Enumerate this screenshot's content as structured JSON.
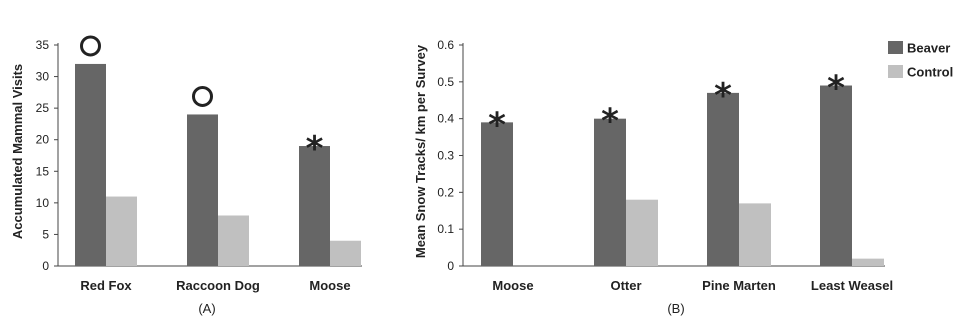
{
  "colors": {
    "beaver": "#666666",
    "control": "#c0c0c0"
  },
  "chart_data": [
    {
      "type": "bar",
      "panel_label": "(A)",
      "categories": [
        "Red Fox",
        "Raccoon Dog",
        "Moose"
      ],
      "series": [
        {
          "name": "Beaver",
          "values": [
            32,
            24,
            19
          ]
        },
        {
          "name": "Control",
          "values": [
            11,
            8,
            4
          ]
        }
      ],
      "markers": [
        "circle",
        "circle",
        "star"
      ],
      "ylabel": "Accumulated Mammal Visits",
      "ylim": [
        0,
        35
      ],
      "yticks": [
        "0",
        "5",
        "10",
        "15",
        "20",
        "25",
        "30",
        "35"
      ],
      "grid": false
    },
    {
      "type": "bar",
      "panel_label": "(B)",
      "categories": [
        "Moose",
        "Otter",
        "Pine Marten",
        "Least Weasel"
      ],
      "series": [
        {
          "name": "Beaver",
          "values": [
            0.39,
            0.4,
            0.47,
            0.49
          ]
        },
        {
          "name": "Control",
          "values": [
            0,
            0.18,
            0.17,
            0.02
          ]
        }
      ],
      "markers": [
        "star",
        "star",
        "star",
        "star"
      ],
      "ylabel": "Mean Snow Tracks/ km per Survey",
      "ylim": [
        0,
        0.6
      ],
      "yticks": [
        "0",
        "0.1",
        "0.2",
        "0.3",
        "0.4",
        "0.5",
        "0.6"
      ],
      "grid": false,
      "legend": {
        "placement": "top-right",
        "entries": [
          "Beaver",
          "Control"
        ]
      }
    }
  ]
}
